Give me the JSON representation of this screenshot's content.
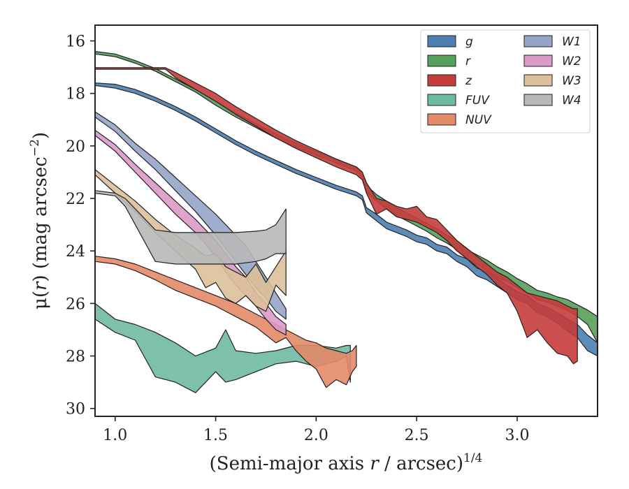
{
  "chart_data": {
    "type": "area",
    "title": "",
    "xlabel_main": "(Semi-major axis ",
    "xlabel_var": "r",
    "xlabel_tail": " / arcsec)",
    "xlabel_sup": "1/4",
    "ylabel_main": "μ(",
    "ylabel_var": "r",
    "ylabel_tail": ") (mag arcsec",
    "ylabel_sup": "−2",
    "ylabel_close": ")",
    "xlim": [
      0.9,
      3.4
    ],
    "ylim": [
      30.3,
      15.4
    ],
    "y_inverted": true,
    "grid": false,
    "xticks": [
      1.0,
      1.5,
      2.0,
      2.5,
      3.0
    ],
    "xtick_labels": [
      "1.0",
      "1.5",
      "2.0",
      "2.5",
      "3.0"
    ],
    "yticks": [
      16,
      18,
      20,
      22,
      24,
      26,
      28,
      30
    ],
    "ytick_labels": [
      "16",
      "18",
      "20",
      "22",
      "24",
      "26",
      "28",
      "30"
    ],
    "legend_position": "top-right",
    "legend_columns": 2,
    "series": [
      {
        "name": "g",
        "color": "#4c7fb0",
        "x": [
          0.9,
          1.0,
          1.1,
          1.2,
          1.3,
          1.4,
          1.5,
          1.6,
          1.7,
          1.8,
          1.9,
          2.0,
          2.1,
          2.2,
          2.23,
          2.25,
          2.3,
          2.35,
          2.4,
          2.45,
          2.5,
          2.55,
          2.6,
          2.65,
          2.7,
          2.75,
          2.8,
          2.85,
          2.9,
          2.95,
          3.0,
          3.05,
          3.1,
          3.15,
          3.2,
          3.25,
          3.3,
          3.35,
          3.4
        ],
        "lower": [
          17.6,
          17.65,
          17.85,
          18.15,
          18.5,
          18.9,
          19.35,
          19.8,
          20.2,
          20.55,
          20.9,
          21.2,
          21.5,
          21.75,
          21.9,
          22.35,
          22.6,
          22.9,
          23.05,
          23.2,
          23.4,
          23.5,
          23.75,
          23.85,
          24.15,
          24.3,
          24.65,
          24.8,
          25.05,
          25.3,
          25.55,
          25.7,
          26.0,
          26.15,
          26.35,
          26.6,
          26.8,
          27.2,
          27.5
        ],
        "upper": [
          17.7,
          17.8,
          18.0,
          18.3,
          18.65,
          19.05,
          19.5,
          19.95,
          20.35,
          20.7,
          21.05,
          21.35,
          21.65,
          21.9,
          22.05,
          22.55,
          22.85,
          23.15,
          23.3,
          23.45,
          23.65,
          23.75,
          24.0,
          24.1,
          24.4,
          24.6,
          24.95,
          25.1,
          25.35,
          25.6,
          25.85,
          26.0,
          26.35,
          26.5,
          26.75,
          27.05,
          27.3,
          27.8,
          28.0
        ]
      },
      {
        "name": "r",
        "color": "#55a05a",
        "x": [
          0.9,
          1.0,
          1.1,
          1.2,
          1.3,
          1.4,
          1.5,
          1.6,
          1.7,
          1.8,
          1.9,
          2.0,
          2.1,
          2.2,
          2.23,
          2.25,
          2.3,
          2.35,
          2.4,
          2.45,
          2.5,
          2.55,
          2.6,
          2.65,
          2.7,
          2.75,
          2.8,
          2.85,
          2.9,
          2.95,
          3.0,
          3.05,
          3.1,
          3.15,
          3.2,
          3.25,
          3.3,
          3.35,
          3.4
        ],
        "lower": [
          16.4,
          16.5,
          16.75,
          17.05,
          17.45,
          17.85,
          18.3,
          18.75,
          19.15,
          19.55,
          19.9,
          20.2,
          20.5,
          20.8,
          21.0,
          21.5,
          21.85,
          22.1,
          22.35,
          22.55,
          22.75,
          22.95,
          23.15,
          23.4,
          23.6,
          23.95,
          24.15,
          24.35,
          24.6,
          24.8,
          25.05,
          25.25,
          25.5,
          25.6,
          25.75,
          25.85,
          26.05,
          26.25,
          26.5
        ],
        "upper": [
          16.5,
          16.6,
          16.85,
          17.15,
          17.55,
          17.95,
          18.45,
          18.9,
          19.3,
          19.7,
          20.05,
          20.35,
          20.65,
          20.95,
          21.2,
          21.75,
          22.1,
          22.4,
          22.65,
          22.85,
          23.05,
          23.25,
          23.5,
          23.7,
          23.95,
          24.3,
          24.5,
          24.75,
          25.0,
          25.15,
          25.4,
          25.6,
          25.85,
          25.95,
          26.1,
          26.25,
          26.5,
          26.8,
          27.5
        ]
      },
      {
        "name": "z",
        "color": "#c53c3c",
        "x": [
          0.9,
          1.0,
          1.1,
          1.2,
          1.25,
          1.3,
          1.4,
          1.5,
          1.6,
          1.7,
          1.8,
          1.9,
          2.0,
          2.1,
          2.2,
          2.23,
          2.25,
          2.3,
          2.35,
          2.4,
          2.45,
          2.5,
          2.55,
          2.6,
          2.65,
          2.7,
          2.75,
          2.8,
          2.85,
          2.9,
          2.95,
          3.0,
          3.05,
          3.1,
          3.15,
          3.2,
          3.25,
          3.28,
          3.3
        ],
        "lower": [
          17.02,
          17.02,
          17.02,
          17.02,
          17.02,
          17.2,
          17.6,
          18.0,
          18.5,
          18.95,
          19.4,
          19.8,
          20.15,
          20.5,
          20.8,
          21.0,
          21.4,
          22.0,
          22.1,
          22.3,
          22.4,
          22.3,
          22.7,
          22.8,
          23.2,
          23.6,
          23.9,
          24.2,
          24.5,
          24.8,
          25.0,
          25.3,
          25.6,
          25.7,
          25.8,
          25.9,
          26.1,
          26.2,
          26.2
        ],
        "upper": [
          17.08,
          17.08,
          17.08,
          17.08,
          17.08,
          17.4,
          17.85,
          18.3,
          18.8,
          19.25,
          19.7,
          20.1,
          20.45,
          20.8,
          21.1,
          21.3,
          21.8,
          22.6,
          22.4,
          22.7,
          22.8,
          22.9,
          23.1,
          23.3,
          23.6,
          24.0,
          24.3,
          24.6,
          24.9,
          25.3,
          25.6,
          26.3,
          27.3,
          27.0,
          27.5,
          27.9,
          28.0,
          28.3,
          28.2
        ]
      },
      {
        "name": "FUV",
        "color": "#6fb9a2",
        "x": [
          0.9,
          1.0,
          1.1,
          1.2,
          1.3,
          1.4,
          1.5,
          1.55,
          1.6,
          1.7,
          1.8,
          1.9,
          2.0,
          2.1,
          2.15,
          2.17
        ],
        "lower": [
          26.0,
          26.6,
          26.8,
          27.1,
          27.5,
          28.0,
          27.7,
          27.0,
          27.8,
          27.9,
          27.8,
          27.6,
          27.6,
          27.7,
          27.6,
          27.6
        ],
        "upper": [
          26.6,
          27.1,
          27.4,
          28.8,
          29.0,
          29.4,
          28.6,
          29.0,
          28.9,
          28.6,
          28.3,
          28.2,
          28.4,
          28.2,
          28.0,
          29.0
        ]
      },
      {
        "name": "NUV",
        "color": "#e38a68",
        "x": [
          0.9,
          1.0,
          1.1,
          1.2,
          1.3,
          1.4,
          1.5,
          1.6,
          1.7,
          1.75,
          1.8,
          1.85,
          1.9,
          1.95,
          2.0,
          2.05,
          2.1,
          2.15,
          2.18,
          2.2
        ],
        "lower": [
          24.2,
          24.3,
          24.5,
          24.8,
          25.1,
          25.4,
          25.7,
          26.0,
          26.4,
          26.6,
          26.8,
          27.0,
          27.2,
          27.4,
          27.5,
          27.7,
          27.8,
          27.9,
          27.8,
          27.6
        ],
        "upper": [
          24.4,
          24.5,
          24.75,
          25.1,
          25.5,
          25.8,
          26.1,
          26.5,
          26.9,
          27.2,
          27.5,
          27.3,
          27.8,
          28.2,
          28.5,
          29.2,
          28.9,
          29.1,
          28.6,
          28.4
        ]
      },
      {
        "name": "W1",
        "color": "#96a4c8",
        "x": [
          0.9,
          1.0,
          1.1,
          1.2,
          1.3,
          1.4,
          1.5,
          1.55,
          1.6,
          1.65,
          1.7,
          1.75,
          1.8,
          1.85
        ],
        "lower": [
          18.7,
          19.2,
          19.9,
          20.5,
          21.2,
          21.9,
          22.6,
          23.0,
          23.4,
          23.8,
          24.4,
          25.0,
          25.6,
          26.2
        ],
        "upper": [
          18.9,
          19.45,
          20.2,
          20.9,
          21.7,
          22.5,
          23.4,
          23.9,
          24.4,
          24.9,
          25.4,
          25.8,
          26.3,
          26.6
        ]
      },
      {
        "name": "W2",
        "color": "#dc9ac8",
        "x": [
          0.9,
          1.0,
          1.1,
          1.2,
          1.3,
          1.4,
          1.5,
          1.55,
          1.6,
          1.65,
          1.7,
          1.75,
          1.8,
          1.85
        ],
        "lower": [
          19.4,
          19.95,
          20.7,
          21.4,
          22.1,
          22.8,
          23.6,
          24.1,
          24.6,
          25.0,
          25.6,
          26.0,
          26.5,
          26.8
        ],
        "upper": [
          19.6,
          20.2,
          21.0,
          21.8,
          22.6,
          23.3,
          24.2,
          24.8,
          25.3,
          25.7,
          26.1,
          26.6,
          27.0,
          27.2
        ]
      },
      {
        "name": "W3",
        "color": "#dcc09a",
        "x": [
          0.9,
          1.0,
          1.1,
          1.2,
          1.3,
          1.4,
          1.45,
          1.5,
          1.55,
          1.6,
          1.65,
          1.7,
          1.75,
          1.8,
          1.85
        ],
        "lower": [
          20.9,
          21.5,
          22.1,
          22.8,
          23.4,
          23.9,
          24.2,
          24.1,
          24.6,
          24.8,
          25.0,
          24.5,
          25.2,
          24.6,
          24.0
        ],
        "upper": [
          21.1,
          21.8,
          22.5,
          23.3,
          24.0,
          24.7,
          25.4,
          25.2,
          25.8,
          26.0,
          25.7,
          26.1,
          26.3,
          25.3,
          25.7
        ]
      },
      {
        "name": "W4",
        "color": "#b8b8b8",
        "x": [
          0.9,
          1.0,
          1.05,
          1.1,
          1.2,
          1.3,
          1.4,
          1.5,
          1.6,
          1.7,
          1.75,
          1.8,
          1.85
        ],
        "lower": [
          21.7,
          21.8,
          22.0,
          22.4,
          23.2,
          23.3,
          23.3,
          23.3,
          23.3,
          23.25,
          23.2,
          23.0,
          22.4
        ],
        "upper": [
          21.8,
          21.9,
          22.3,
          23.0,
          24.4,
          24.5,
          24.5,
          24.5,
          24.5,
          24.4,
          24.3,
          24.1,
          24.1
        ]
      }
    ]
  }
}
